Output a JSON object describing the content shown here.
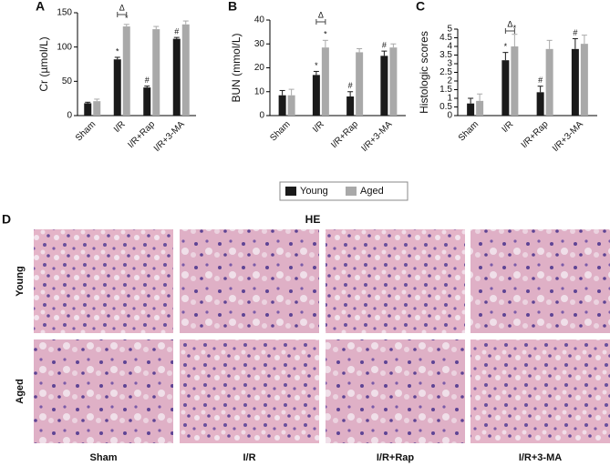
{
  "chart_data": [
    {
      "type": "bar",
      "panel": "A",
      "y_label": "Cr (µmol/L)",
      "categories": [
        "Sham",
        "I/R",
        "I/R+Rap",
        "I/R+3-MA"
      ],
      "ylim": [
        0,
        150
      ],
      "yticks": [
        0,
        50,
        100,
        150
      ],
      "series": [
        {
          "values": [
            18,
            82,
            41,
            112
          ],
          "errors": [
            1.5,
            3,
            2,
            2
          ],
          "marks": [
            null,
            "*",
            "#",
            "#"
          ]
        },
        {
          "values": [
            21,
            130,
            126,
            133
          ],
          "errors": [
            3,
            3,
            4,
            5
          ],
          "marks": [
            null,
            "*",
            null,
            null
          ]
        }
      ],
      "bracket_label": "Δ"
    },
    {
      "type": "bar",
      "panel": "B",
      "y_label": "BUN (mmol/L)",
      "categories": [
        "Sham",
        "I/R",
        "I/R+Rap",
        "I/R+3-MA"
      ],
      "ylim": [
        0,
        40
      ],
      "yticks": [
        0,
        10,
        20,
        30,
        40
      ],
      "series": [
        {
          "values": [
            8.5,
            17,
            8,
            25
          ],
          "errors": [
            2,
            1.5,
            2,
            2
          ],
          "marks": [
            null,
            "*",
            "#",
            "#"
          ]
        },
        {
          "values": [
            8.5,
            28.5,
            26.5,
            28.5
          ],
          "errors": [
            2.5,
            3,
            1.5,
            1.5
          ],
          "marks": [
            null,
            "*",
            null,
            null
          ]
        }
      ],
      "bracket_label": "Δ"
    },
    {
      "type": "bar",
      "panel": "C",
      "y_label": "Histologic scores",
      "categories": [
        "Sham",
        "I/R",
        "I/R+Rap",
        "I/R+3-MA"
      ],
      "ylim": [
        0,
        5
      ],
      "yticks": [
        0,
        0.5,
        1,
        1.5,
        2,
        2.5,
        3,
        3.5,
        4,
        4.5,
        5
      ],
      "series": [
        {
          "values": [
            0.7,
            3.2,
            1.35,
            3.85
          ],
          "errors": [
            0.3,
            0.45,
            0.35,
            0.6
          ],
          "marks": [
            null,
            "*",
            "#",
            "#"
          ]
        },
        {
          "values": [
            0.85,
            4.0,
            3.85,
            4.15
          ],
          "errors": [
            0.4,
            0.7,
            0.5,
            0.5
          ],
          "marks": [
            null,
            "*",
            null,
            null
          ]
        }
      ],
      "bracket_label": "Δ"
    }
  ],
  "legend": [
    {
      "name": "Young",
      "color": "#1a1a1a"
    },
    {
      "name": "Aged",
      "color": "#a9a9a9"
    }
  ],
  "panel_d": {
    "panel": "D",
    "stain": "HE",
    "rows": [
      "Young",
      "Aged"
    ],
    "columns": [
      "Sham",
      "I/R",
      "I/R+Rap",
      "I/R+3-MA"
    ]
  }
}
